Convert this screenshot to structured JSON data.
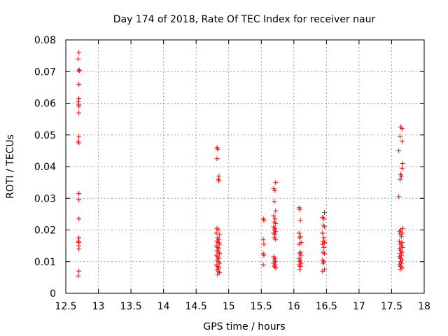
{
  "chart_data": {
    "type": "scatter",
    "title": "Day 174 of 2018, Rate Of TEC Index for receiver naur",
    "xlabel": "GPS time / hours",
    "ylabel": "ROTI / TECUs",
    "xlim": [
      12.5,
      18
    ],
    "ylim": [
      0,
      0.08
    ],
    "xticks": [
      "12.5",
      "13",
      "13.5",
      "14",
      "14.5",
      "15",
      "15.5",
      "16",
      "16.5",
      "17",
      "17.5",
      "18"
    ],
    "yticks": [
      "0",
      "0.01",
      "0.02",
      "0.03",
      "0.04",
      "0.05",
      "0.06",
      "0.07",
      "0.08"
    ],
    "grid": true,
    "marker": "+",
    "marker_color": "#ff0000",
    "series": [
      {
        "points": [
          [
            12.7,
            0.076
          ],
          [
            12.69,
            0.074
          ],
          [
            12.7,
            0.0705
          ],
          [
            12.71,
            0.0703
          ],
          [
            12.7,
            0.066
          ],
          [
            12.7,
            0.0615
          ],
          [
            12.69,
            0.0605
          ],
          [
            12.7,
            0.0595
          ],
          [
            12.7,
            0.059
          ],
          [
            12.7,
            0.057
          ],
          [
            12.7,
            0.0495
          ],
          [
            12.69,
            0.048
          ],
          [
            12.7,
            0.0475
          ],
          [
            12.7,
            0.0315
          ],
          [
            12.7,
            0.0295
          ],
          [
            12.7,
            0.0235
          ],
          [
            12.7,
            0.0175
          ],
          [
            12.69,
            0.0165
          ],
          [
            12.7,
            0.016
          ],
          [
            12.7,
            0.015
          ],
          [
            12.7,
            0.014
          ],
          [
            12.7,
            0.007
          ],
          [
            12.69,
            0.0055
          ],
          [
            14.82,
            0.046
          ],
          [
            14.83,
            0.0455
          ],
          [
            14.82,
            0.0425
          ],
          [
            14.85,
            0.037
          ],
          [
            14.84,
            0.036
          ],
          [
            14.85,
            0.0355
          ],
          [
            14.82,
            0.0205
          ],
          [
            14.84,
            0.02
          ],
          [
            14.81,
            0.019
          ],
          [
            14.86,
            0.0185
          ],
          [
            14.83,
            0.0175
          ],
          [
            14.85,
            0.017
          ],
          [
            14.82,
            0.0165
          ],
          [
            14.84,
            0.016
          ],
          [
            14.86,
            0.0155
          ],
          [
            14.81,
            0.015
          ],
          [
            14.83,
            0.0145
          ],
          [
            14.85,
            0.014
          ],
          [
            14.82,
            0.0135
          ],
          [
            14.84,
            0.013
          ],
          [
            14.86,
            0.0125
          ],
          [
            14.81,
            0.012
          ],
          [
            14.83,
            0.0115
          ],
          [
            14.85,
            0.011
          ],
          [
            14.82,
            0.0105
          ],
          [
            14.84,
            0.01
          ],
          [
            14.86,
            0.0095
          ],
          [
            14.81,
            0.009
          ],
          [
            14.83,
            0.0085
          ],
          [
            14.85,
            0.008
          ],
          [
            14.82,
            0.0075
          ],
          [
            14.84,
            0.007
          ],
          [
            14.86,
            0.0065
          ],
          [
            14.83,
            0.006
          ],
          [
            15.53,
            0.0235
          ],
          [
            15.54,
            0.023
          ],
          [
            15.53,
            0.017
          ],
          [
            15.54,
            0.0155
          ],
          [
            15.53,
            0.0125
          ],
          [
            15.54,
            0.012
          ],
          [
            15.53,
            0.009
          ],
          [
            15.72,
            0.035
          ],
          [
            15.69,
            0.033
          ],
          [
            15.71,
            0.0325
          ],
          [
            15.7,
            0.029
          ],
          [
            15.72,
            0.026
          ],
          [
            15.69,
            0.0245
          ],
          [
            15.71,
            0.0235
          ],
          [
            15.7,
            0.0225
          ],
          [
            15.72,
            0.022
          ],
          [
            15.69,
            0.021
          ],
          [
            15.71,
            0.0205
          ],
          [
            15.7,
            0.02
          ],
          [
            15.72,
            0.0195
          ],
          [
            15.69,
            0.019
          ],
          [
            15.71,
            0.0185
          ],
          [
            15.7,
            0.0175
          ],
          [
            15.72,
            0.017
          ],
          [
            15.69,
            0.0115
          ],
          [
            15.71,
            0.011
          ],
          [
            15.7,
            0.0105
          ],
          [
            15.72,
            0.01
          ],
          [
            15.69,
            0.0095
          ],
          [
            15.71,
            0.009
          ],
          [
            15.7,
            0.0085
          ],
          [
            15.72,
            0.008
          ],
          [
            16.08,
            0.027
          ],
          [
            16.09,
            0.0265
          ],
          [
            16.1,
            0.023
          ],
          [
            16.08,
            0.019
          ],
          [
            16.1,
            0.018
          ],
          [
            16.09,
            0.0175
          ],
          [
            16.11,
            0.016
          ],
          [
            16.08,
            0.0155
          ],
          [
            16.1,
            0.013
          ],
          [
            16.09,
            0.0125
          ],
          [
            16.11,
            0.012
          ],
          [
            16.08,
            0.011
          ],
          [
            16.1,
            0.0105
          ],
          [
            16.09,
            0.01
          ],
          [
            16.11,
            0.0095
          ],
          [
            16.08,
            0.009
          ],
          [
            16.1,
            0.0085
          ],
          [
            16.09,
            0.0075
          ],
          [
            16.47,
            0.0255
          ],
          [
            16.44,
            0.024
          ],
          [
            16.46,
            0.0235
          ],
          [
            16.45,
            0.0215
          ],
          [
            16.47,
            0.021
          ],
          [
            16.44,
            0.019
          ],
          [
            16.46,
            0.0175
          ],
          [
            16.45,
            0.0165
          ],
          [
            16.47,
            0.016
          ],
          [
            16.44,
            0.0155
          ],
          [
            16.46,
            0.0145
          ],
          [
            16.45,
            0.013
          ],
          [
            16.47,
            0.0125
          ],
          [
            16.44,
            0.0105
          ],
          [
            16.46,
            0.01
          ],
          [
            16.45,
            0.0095
          ],
          [
            16.47,
            0.0075
          ],
          [
            16.44,
            0.007
          ],
          [
            17.64,
            0.0525
          ],
          [
            17.66,
            0.052
          ],
          [
            17.63,
            0.0495
          ],
          [
            17.66,
            0.048
          ],
          [
            17.61,
            0.045
          ],
          [
            17.67,
            0.041
          ],
          [
            17.66,
            0.0395
          ],
          [
            17.64,
            0.0375
          ],
          [
            17.65,
            0.037
          ],
          [
            17.63,
            0.036
          ],
          [
            17.61,
            0.0305
          ],
          [
            17.67,
            0.0205
          ],
          [
            17.64,
            0.02
          ],
          [
            17.62,
            0.0195
          ],
          [
            17.66,
            0.019
          ],
          [
            17.63,
            0.0185
          ],
          [
            17.65,
            0.018
          ],
          [
            17.62,
            0.0165
          ],
          [
            17.66,
            0.016
          ],
          [
            17.63,
            0.0155
          ],
          [
            17.65,
            0.015
          ],
          [
            17.67,
            0.0145
          ],
          [
            17.62,
            0.014
          ],
          [
            17.64,
            0.0135
          ],
          [
            17.66,
            0.013
          ],
          [
            17.63,
            0.0125
          ],
          [
            17.65,
            0.012
          ],
          [
            17.62,
            0.0115
          ],
          [
            17.64,
            0.011
          ],
          [
            17.66,
            0.0105
          ],
          [
            17.63,
            0.01
          ],
          [
            17.65,
            0.0095
          ],
          [
            17.62,
            0.009
          ],
          [
            17.64,
            0.0085
          ],
          [
            17.66,
            0.008
          ],
          [
            17.63,
            0.0075
          ]
        ]
      }
    ]
  }
}
